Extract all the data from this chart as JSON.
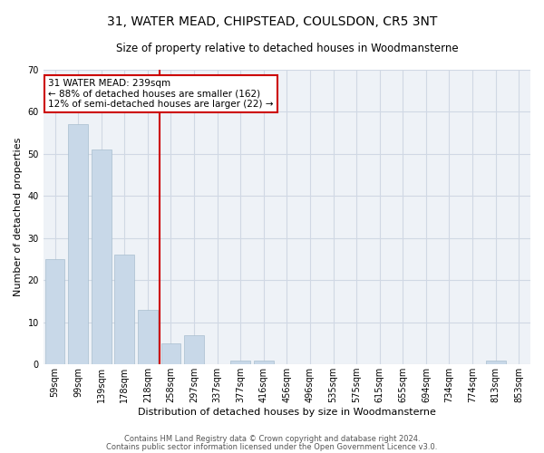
{
  "title": "31, WATER MEAD, CHIPSTEAD, COULSDON, CR5 3NT",
  "subtitle": "Size of property relative to detached houses in Woodmansterne",
  "xlabel": "Distribution of detached houses by size in Woodmansterne",
  "ylabel": "Number of detached properties",
  "bar_color": "#c8d8e8",
  "bar_edgecolor": "#a8bece",
  "categories": [
    "59sqm",
    "99sqm",
    "139sqm",
    "178sqm",
    "218sqm",
    "258sqm",
    "297sqm",
    "337sqm",
    "377sqm",
    "416sqm",
    "456sqm",
    "496sqm",
    "535sqm",
    "575sqm",
    "615sqm",
    "655sqm",
    "694sqm",
    "734sqm",
    "774sqm",
    "813sqm",
    "853sqm"
  ],
  "values": [
    25,
    57,
    51,
    26,
    13,
    5,
    7,
    0,
    1,
    1,
    0,
    0,
    0,
    0,
    0,
    0,
    0,
    0,
    0,
    1,
    0
  ],
  "ylim": [
    0,
    70
  ],
  "yticks": [
    0,
    10,
    20,
    30,
    40,
    50,
    60,
    70
  ],
  "property_line_x": 4.5,
  "annotation_title": "31 WATER MEAD: 239sqm",
  "annotation_line1": "← 88% of detached houses are smaller (162)",
  "annotation_line2": "12% of semi-detached houses are larger (22) →",
  "vline_color": "#cc0000",
  "annotation_box_color": "#cc0000",
  "footer1": "Contains HM Land Registry data © Crown copyright and database right 2024.",
  "footer2": "Contains public sector information licensed under the Open Government Licence v3.0.",
  "background_color": "#eef2f7",
  "grid_color": "#d0d8e4",
  "title_fontsize": 10,
  "subtitle_fontsize": 8.5,
  "ylabel_fontsize": 8,
  "xlabel_fontsize": 8,
  "tick_fontsize": 7,
  "annotation_fontsize": 7.5,
  "footer_fontsize": 6
}
